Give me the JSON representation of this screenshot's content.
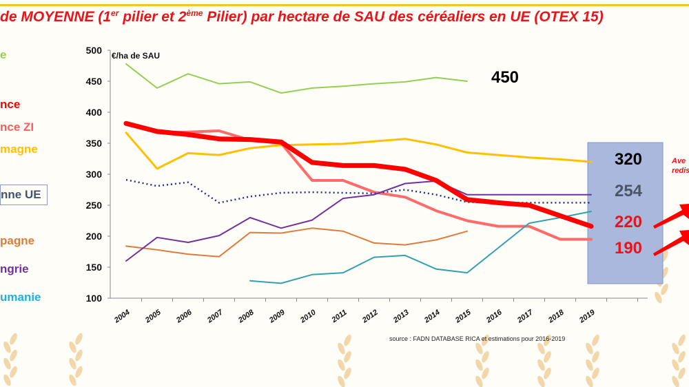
{
  "chart_data": {
    "type": "line",
    "title_parts": [
      "de MOYENNE (1",
      "er",
      " pilier et 2",
      "ème",
      " Pilier) par hectare de SAU des céréaliers en UE (OTEX 15)"
    ],
    "ylabel": "€/ha de SAU",
    "ylim": [
      100,
      500
    ],
    "yticks": [
      100,
      150,
      200,
      250,
      300,
      350,
      400,
      450,
      500
    ],
    "categories": [
      "2004",
      "2005",
      "2006",
      "2007",
      "2008",
      "2009",
      "2010",
      "2011",
      "2012",
      "2013",
      "2014",
      "2015",
      "2016",
      "2017",
      "2018",
      "2019"
    ],
    "grid": false,
    "source": "source : FADN DATABASE RICA et estimations pour 2016-2019",
    "series": [
      {
        "name": "e",
        "color": "#92d050",
        "width": 2,
        "values": [
          478,
          439,
          462,
          446,
          449,
          431,
          439,
          442,
          446,
          449,
          456,
          450,
          null,
          null,
          null,
          null
        ]
      },
      {
        "name": "magne",
        "color": "#ffc000",
        "width": 3,
        "values": [
          367,
          309,
          334,
          331,
          342,
          347,
          348,
          349,
          353,
          357,
          348,
          335,
          331,
          327,
          324,
          320
        ]
      },
      {
        "name": "nce ZI",
        "color": "#ff6b6b",
        "width": 4,
        "values": [
          382,
          367,
          368,
          370,
          355,
          350,
          290,
          290,
          271,
          263,
          241,
          225,
          216,
          216,
          195,
          195
        ]
      },
      {
        "name": "nne UE",
        "color": "#1f2f8f",
        "width": 2.5,
        "dotted": true,
        "values": [
          291,
          281,
          287,
          254,
          264,
          270,
          271,
          270,
          269,
          275,
          267,
          255,
          254,
          254,
          254,
          254
        ]
      },
      {
        "name": "pagne",
        "color": "#e07b39",
        "width": 2,
        "values": [
          184,
          178,
          171,
          167,
          206,
          205,
          213,
          208,
          189,
          186,
          194,
          208,
          null,
          null,
          null,
          null
        ]
      },
      {
        "name": "ngrie",
        "color": "#7030a0",
        "width": 2,
        "values": [
          160,
          198,
          190,
          201,
          230,
          213,
          226,
          261,
          267,
          285,
          289,
          267,
          267,
          267,
          267,
          267
        ]
      },
      {
        "name": "umanie",
        "color": "#31a0b0",
        "width": 2,
        "values": [
          null,
          null,
          null,
          null,
          128,
          124,
          138,
          141,
          166,
          169,
          147,
          141,
          181,
          221,
          230,
          240
        ]
      },
      {
        "name": "nce",
        "color": "#ff0000",
        "width": 7,
        "values": [
          382,
          369,
          364,
          357,
          356,
          352,
          319,
          314,
          314,
          308,
          290,
          259,
          254,
          250,
          233,
          216
        ]
      }
    ],
    "legend": [
      {
        "label": "e",
        "color": "#92d050"
      },
      {
        "label": "nce",
        "color": "#ff0000"
      },
      {
        "label": "nce ZI",
        "color": "#ff5a5a"
      },
      {
        "label": "magne",
        "color": "#ffc000"
      },
      {
        "label": "nne UE",
        "color": "#44546a",
        "boxed": true
      },
      {
        "label": "pagne",
        "color": "#e07b39"
      },
      {
        "label": "ngrie",
        "color": "#7030a0"
      },
      {
        "label": "umanie",
        "color": "#1fb0e0"
      }
    ],
    "annotations": [
      {
        "text": "450",
        "color": "#000000"
      },
      {
        "text": "320",
        "color": "#000000"
      },
      {
        "text": "254",
        "color": "#4a5568"
      },
      {
        "text": "220",
        "color": "#e8141b"
      },
      {
        "text": "190",
        "color": "#e8141b"
      }
    ],
    "side_text": [
      "Ave",
      "redis"
    ],
    "highlight_box_color": "#a9b8dc"
  }
}
